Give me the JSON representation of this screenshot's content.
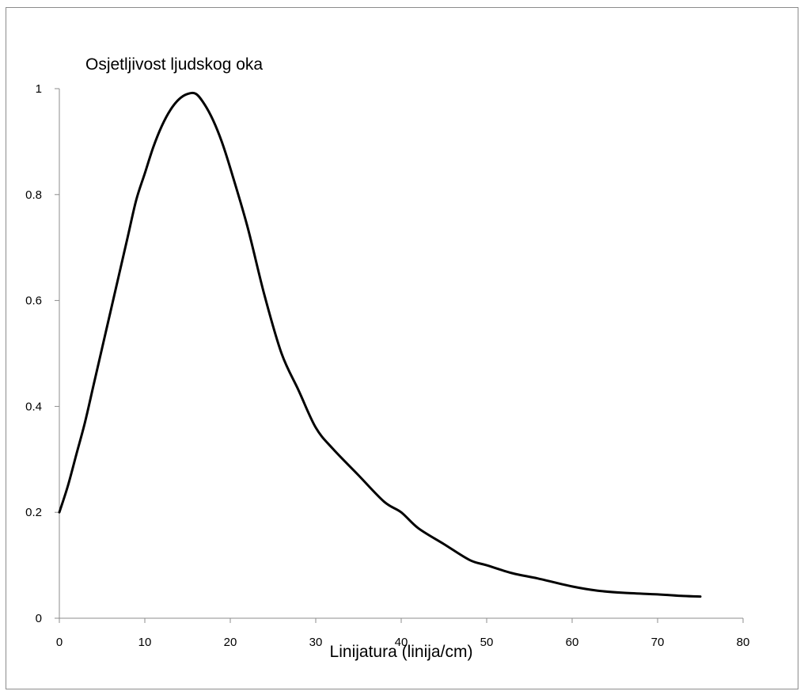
{
  "chart_data": {
    "type": "line",
    "title": "Osjetljivost ljudskog oka",
    "xlabel": "Linijatura (linija/cm)",
    "ylabel": "",
    "xlim": [
      0,
      80
    ],
    "ylim": [
      0,
      1
    ],
    "x_ticks": [
      "0",
      "10",
      "20",
      "30",
      "40",
      "50",
      "60",
      "70",
      "80"
    ],
    "y_ticks": [
      "0",
      "0.2",
      "0.4",
      "0.6",
      "0.8",
      "1"
    ],
    "grid": false,
    "legend": "none",
    "series": [
      {
        "color": "#000000",
        "x": [
          0,
          1,
          2,
          3,
          4,
          5,
          6,
          7,
          8,
          9,
          10,
          11,
          12,
          13,
          14,
          15,
          16,
          17,
          18,
          19,
          20,
          22,
          24,
          26,
          28,
          30,
          32,
          35,
          38,
          40,
          42,
          45,
          48,
          50,
          53,
          56,
          60,
          63,
          66,
          70,
          73,
          75
        ],
        "y": [
          0.2,
          0.25,
          0.31,
          0.37,
          0.44,
          0.51,
          0.58,
          0.65,
          0.72,
          0.79,
          0.84,
          0.89,
          0.93,
          0.96,
          0.98,
          0.99,
          0.99,
          0.97,
          0.94,
          0.9,
          0.85,
          0.74,
          0.61,
          0.5,
          0.43,
          0.36,
          0.32,
          0.27,
          0.22,
          0.2,
          0.17,
          0.14,
          0.11,
          0.1,
          0.085,
          0.075,
          0.06,
          0.052,
          0.048,
          0.045,
          0.042,
          0.041
        ]
      }
    ]
  }
}
